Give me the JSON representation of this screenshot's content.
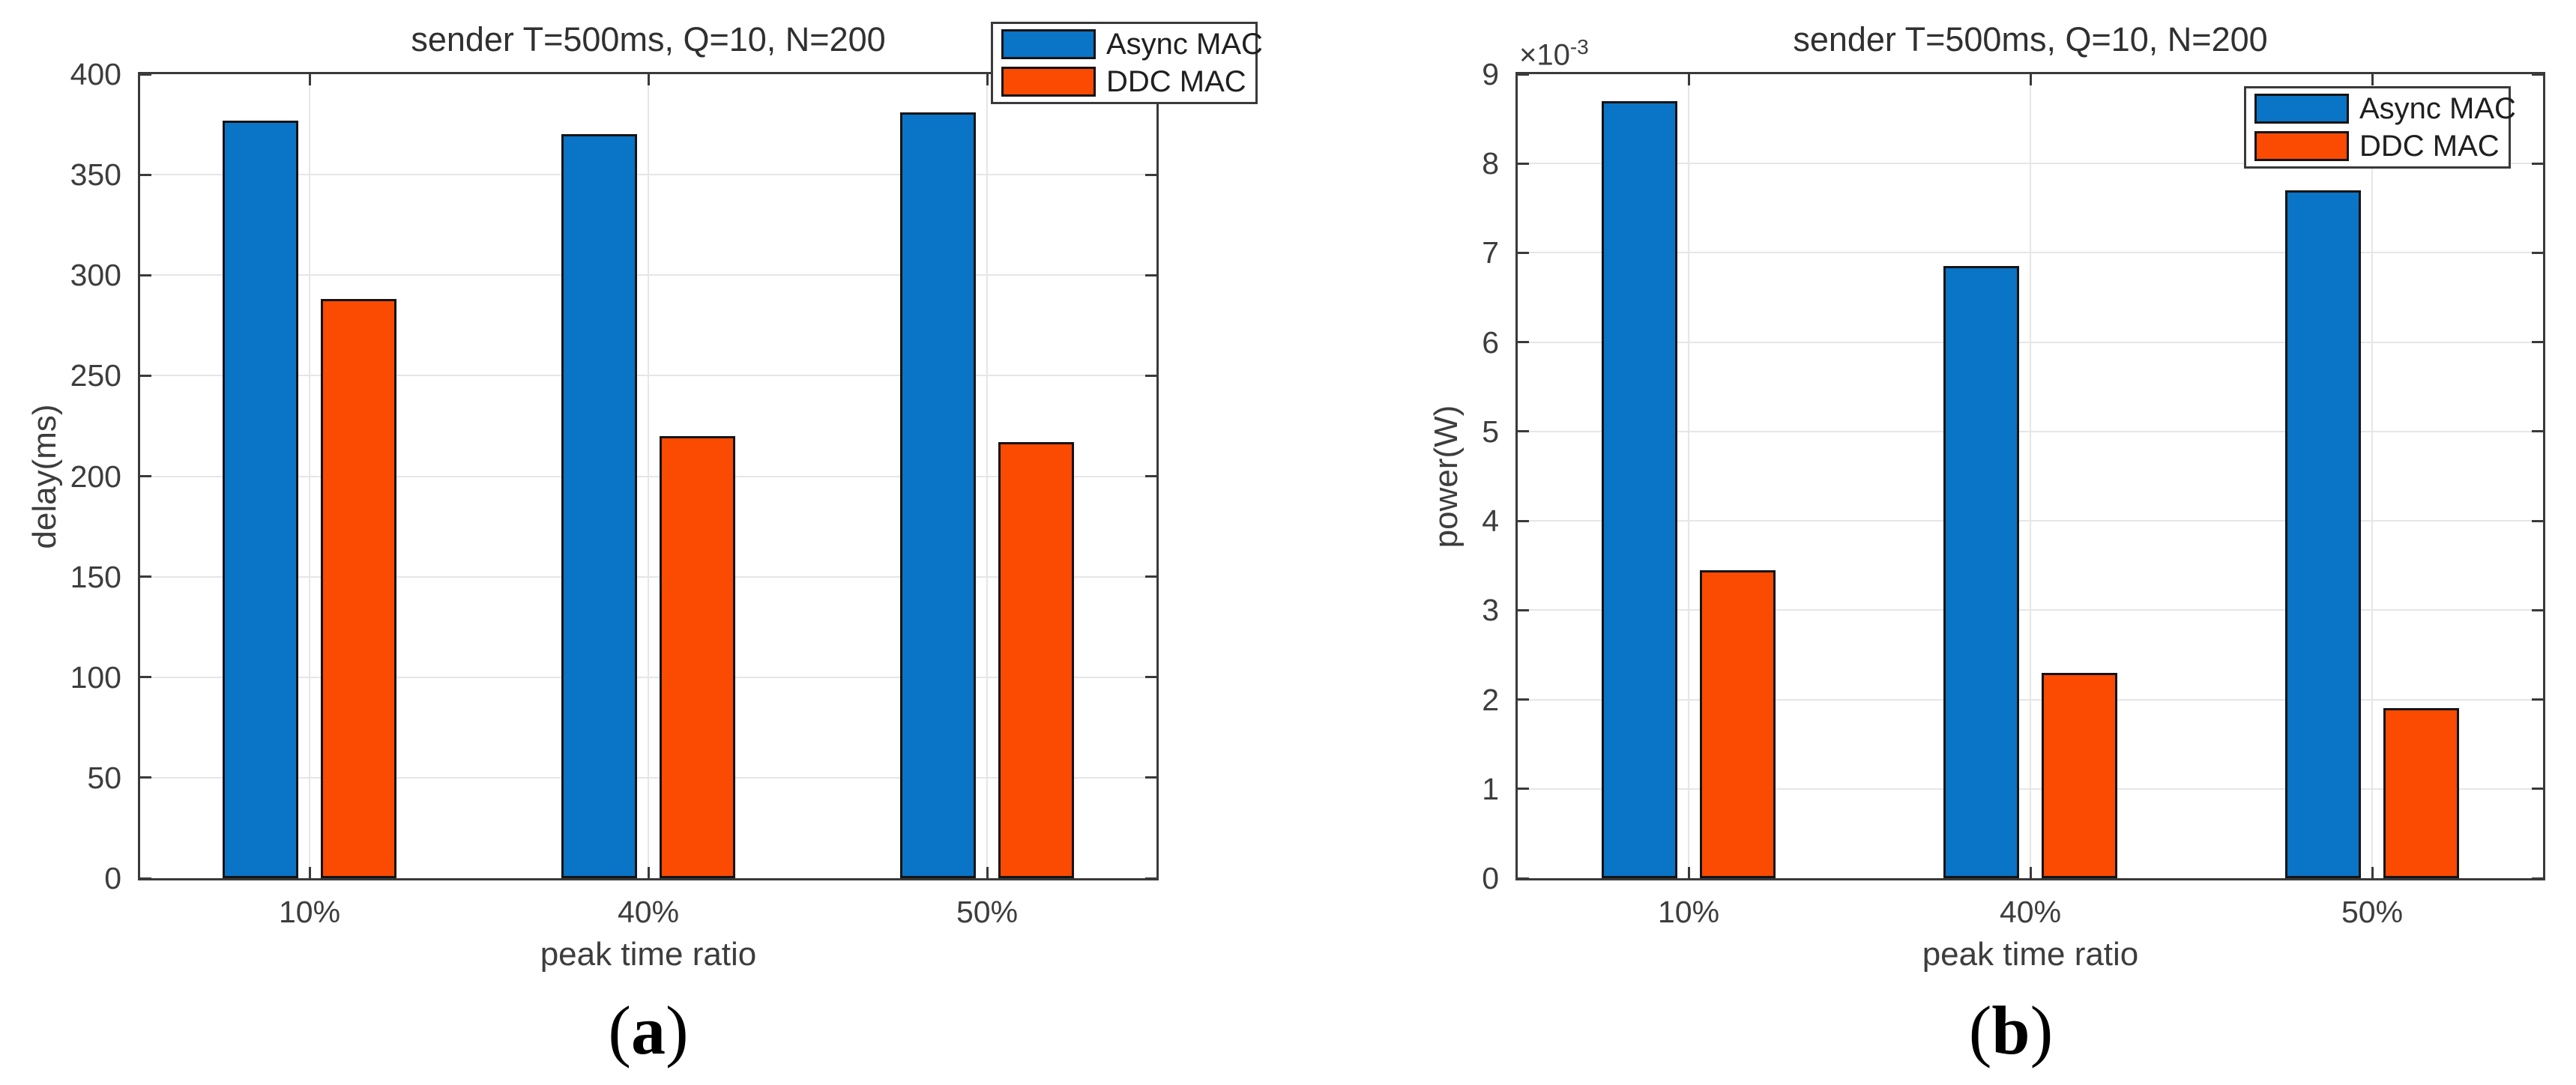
{
  "figure_kind": "two matlab-style grouped bar charts",
  "colors": {
    "series_blue": "#0a74c6",
    "series_orange": "#fb4a02",
    "bar_edge": "#141414",
    "axis_frame": "#3a3a3a",
    "grid_line": "#e6e6e6",
    "tick_text": "#3d3d3d",
    "legend_text": "#1f1f1f",
    "background": "#ffffff"
  },
  "chart_data": [
    {
      "id": "a",
      "type": "bar",
      "title": "sender T=500ms, Q=10, N=200",
      "xlabel": "peak time ratio",
      "ylabel": "delay(ms)",
      "categories": [
        "10%",
        "40%",
        "50%"
      ],
      "series": [
        {
          "name": "Async MAC",
          "color": "#0a74c6",
          "values": [
            377,
            370,
            381
          ]
        },
        {
          "name": "DDC MAC",
          "color": "#fb4a02",
          "values": [
            288,
            220,
            217
          ]
        }
      ],
      "ylim": [
        0,
        400
      ],
      "yticks": [
        0,
        50,
        100,
        150,
        200,
        250,
        300,
        350,
        400
      ],
      "grid": true,
      "legend_position": "outside-top-right"
    },
    {
      "id": "b",
      "type": "bar",
      "title": "sender T=500ms, Q=10, N=200",
      "xlabel": "peak time ratio",
      "ylabel": "power(W)",
      "y_multiplier": {
        "base": "×10",
        "exp": "-3"
      },
      "categories": [
        "10%",
        "40%",
        "50%"
      ],
      "series": [
        {
          "name": "Async MAC",
          "color": "#0a74c6",
          "values": [
            8.7,
            6.85,
            7.7
          ]
        },
        {
          "name": "DDC MAC",
          "color": "#fb4a02",
          "values": [
            3.45,
            2.3,
            1.9
          ]
        }
      ],
      "ylim": [
        0,
        9
      ],
      "yticks": [
        0,
        1,
        2,
        3,
        4,
        5,
        6,
        7,
        8,
        9
      ],
      "grid": true,
      "legend_position": "inside-top-right"
    }
  ],
  "captions": {
    "a": {
      "open": "(",
      "letter": "a",
      "close": ")"
    },
    "b": {
      "open": "(",
      "letter": "b",
      "close": ")"
    }
  }
}
